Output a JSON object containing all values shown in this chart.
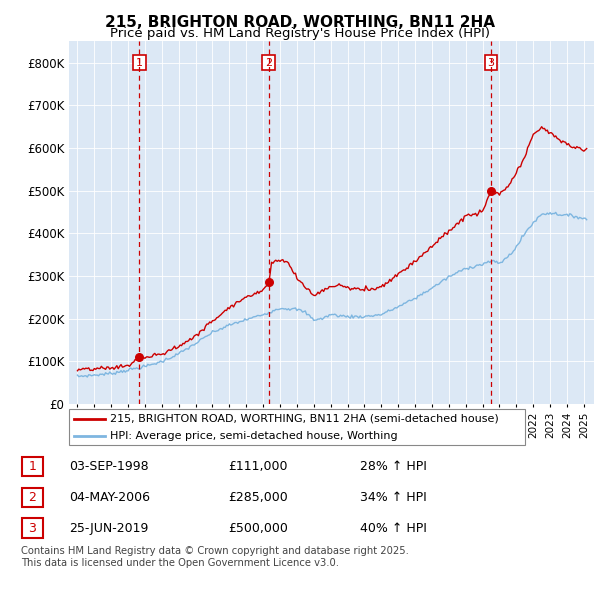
{
  "title": "215, BRIGHTON ROAD, WORTHING, BN11 2HA",
  "subtitle": "Price paid vs. HM Land Registry's House Price Index (HPI)",
  "sale_color": "#cc0000",
  "hpi_color": "#7eb6e0",
  "vline_color": "#cc0000",
  "grid_color": "#cccccc",
  "chart_bg": "#dce8f5",
  "legend_label_sale": "215, BRIGHTON ROAD, WORTHING, BN11 2HA (semi-detached house)",
  "legend_label_hpi": "HPI: Average price, semi-detached house, Worthing",
  "sale_label_dates": [
    "03-SEP-1998",
    "04-MAY-2006",
    "25-JUN-2019"
  ],
  "sale_label_prices": [
    "£111,000",
    "£285,000",
    "£500,000"
  ],
  "sale_label_hpi": [
    "28% ↑ HPI",
    "34% ↑ HPI",
    "40% ↑ HPI"
  ],
  "sale_labels": [
    "1",
    "2",
    "3"
  ],
  "footer": "Contains HM Land Registry data © Crown copyright and database right 2025.\nThis data is licensed under the Open Government Licence v3.0.",
  "hpi_keypoints": [
    [
      1995.0,
      65000
    ],
    [
      1996.0,
      68000
    ],
    [
      1997.0,
      72000
    ],
    [
      1998.0,
      80000
    ],
    [
      1999.0,
      88000
    ],
    [
      2000.0,
      100000
    ],
    [
      2001.0,
      118000
    ],
    [
      2002.0,
      142000
    ],
    [
      2003.0,
      168000
    ],
    [
      2004.0,
      185000
    ],
    [
      2005.0,
      198000
    ],
    [
      2006.0,
      210000
    ],
    [
      2007.0,
      225000
    ],
    [
      2008.0,
      222000
    ],
    [
      2008.5,
      215000
    ],
    [
      2009.0,
      198000
    ],
    [
      2009.5,
      200000
    ],
    [
      2010.0,
      210000
    ],
    [
      2011.0,
      205000
    ],
    [
      2012.0,
      205000
    ],
    [
      2013.0,
      210000
    ],
    [
      2014.0,
      228000
    ],
    [
      2015.0,
      248000
    ],
    [
      2016.0,
      272000
    ],
    [
      2017.0,
      298000
    ],
    [
      2018.0,
      318000
    ],
    [
      2019.0,
      328000
    ],
    [
      2019.5,
      335000
    ],
    [
      2020.0,
      330000
    ],
    [
      2020.5,
      345000
    ],
    [
      2021.0,
      368000
    ],
    [
      2021.5,
      400000
    ],
    [
      2022.0,
      425000
    ],
    [
      2022.5,
      445000
    ],
    [
      2023.0,
      448000
    ],
    [
      2023.5,
      445000
    ],
    [
      2024.0,
      442000
    ],
    [
      2024.5,
      440000
    ],
    [
      2025.25,
      432000
    ]
  ],
  "sale_keypoints": [
    [
      1995.0,
      80000
    ],
    [
      1996.0,
      82000
    ],
    [
      1997.0,
      85000
    ],
    [
      1998.0,
      90000
    ],
    [
      1998.75,
      111000
    ],
    [
      1999.0,
      108000
    ],
    [
      2000.0,
      118000
    ],
    [
      2001.0,
      135000
    ],
    [
      2002.0,
      160000
    ],
    [
      2003.0,
      195000
    ],
    [
      2004.0,
      228000
    ],
    [
      2005.0,
      250000
    ],
    [
      2006.0,
      268000
    ],
    [
      2006.33,
      285000
    ],
    [
      2006.5,
      330000
    ],
    [
      2007.0,
      340000
    ],
    [
      2007.5,
      330000
    ],
    [
      2008.0,
      295000
    ],
    [
      2008.5,
      275000
    ],
    [
      2009.0,
      255000
    ],
    [
      2009.5,
      265000
    ],
    [
      2010.0,
      275000
    ],
    [
      2010.5,
      280000
    ],
    [
      2011.0,
      272000
    ],
    [
      2012.0,
      268000
    ],
    [
      2013.0,
      275000
    ],
    [
      2014.0,
      305000
    ],
    [
      2015.0,
      335000
    ],
    [
      2016.0,
      370000
    ],
    [
      2017.0,
      405000
    ],
    [
      2018.0,
      440000
    ],
    [
      2019.0,
      450000
    ],
    [
      2019.5,
      500000
    ],
    [
      2020.0,
      490000
    ],
    [
      2020.5,
      510000
    ],
    [
      2021.0,
      540000
    ],
    [
      2021.5,
      580000
    ],
    [
      2022.0,
      630000
    ],
    [
      2022.5,
      650000
    ],
    [
      2023.0,
      635000
    ],
    [
      2023.5,
      620000
    ],
    [
      2024.0,
      610000
    ],
    [
      2024.5,
      600000
    ],
    [
      2025.25,
      595000
    ]
  ],
  "vline_dates": [
    1998.667,
    2006.333,
    2019.5
  ],
  "sale_dot_prices": [
    111000,
    285000,
    500000
  ],
  "ylim": [
    0,
    850000
  ],
  "yticks": [
    0,
    100000,
    200000,
    300000,
    400000,
    500000,
    600000,
    700000,
    800000
  ]
}
